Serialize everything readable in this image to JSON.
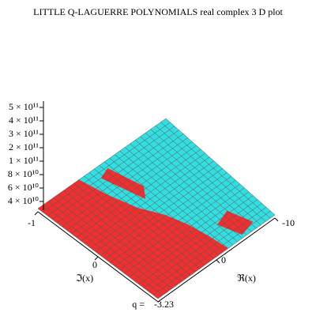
{
  "chart_data": {
    "type": "surface",
    "title": "LITTLE Q-LAGUERRE POLYNOMIALS real complex 3 D plot",
    "xlabel": "ℑ(x)",
    "ylabel": "ℜ(x)",
    "xticks": [
      -1,
      0
    ],
    "yticks": [
      -10,
      0
    ],
    "zticks": [
      {
        "value": 500000000000,
        "label": "5 × 10¹¹"
      },
      {
        "value": 400000000000,
        "label": "4 × 10¹¹"
      },
      {
        "value": 300000000000,
        "label": "3 × 10¹¹"
      },
      {
        "value": 200000000000,
        "label": "2 × 10¹¹"
      },
      {
        "value": 100000000000,
        "label": "1 × 10¹¹"
      },
      {
        "value": 80000000000,
        "label": "8 × 10¹⁰"
      },
      {
        "value": 60000000000,
        "label": "6 × 10¹⁰"
      },
      {
        "value": 40000000000,
        "label": "4 × 10¹⁰"
      }
    ],
    "parameter": {
      "label": "q =",
      "value": -3.23
    },
    "colors": [
      "#ee3030",
      "#33dde0"
    ]
  }
}
